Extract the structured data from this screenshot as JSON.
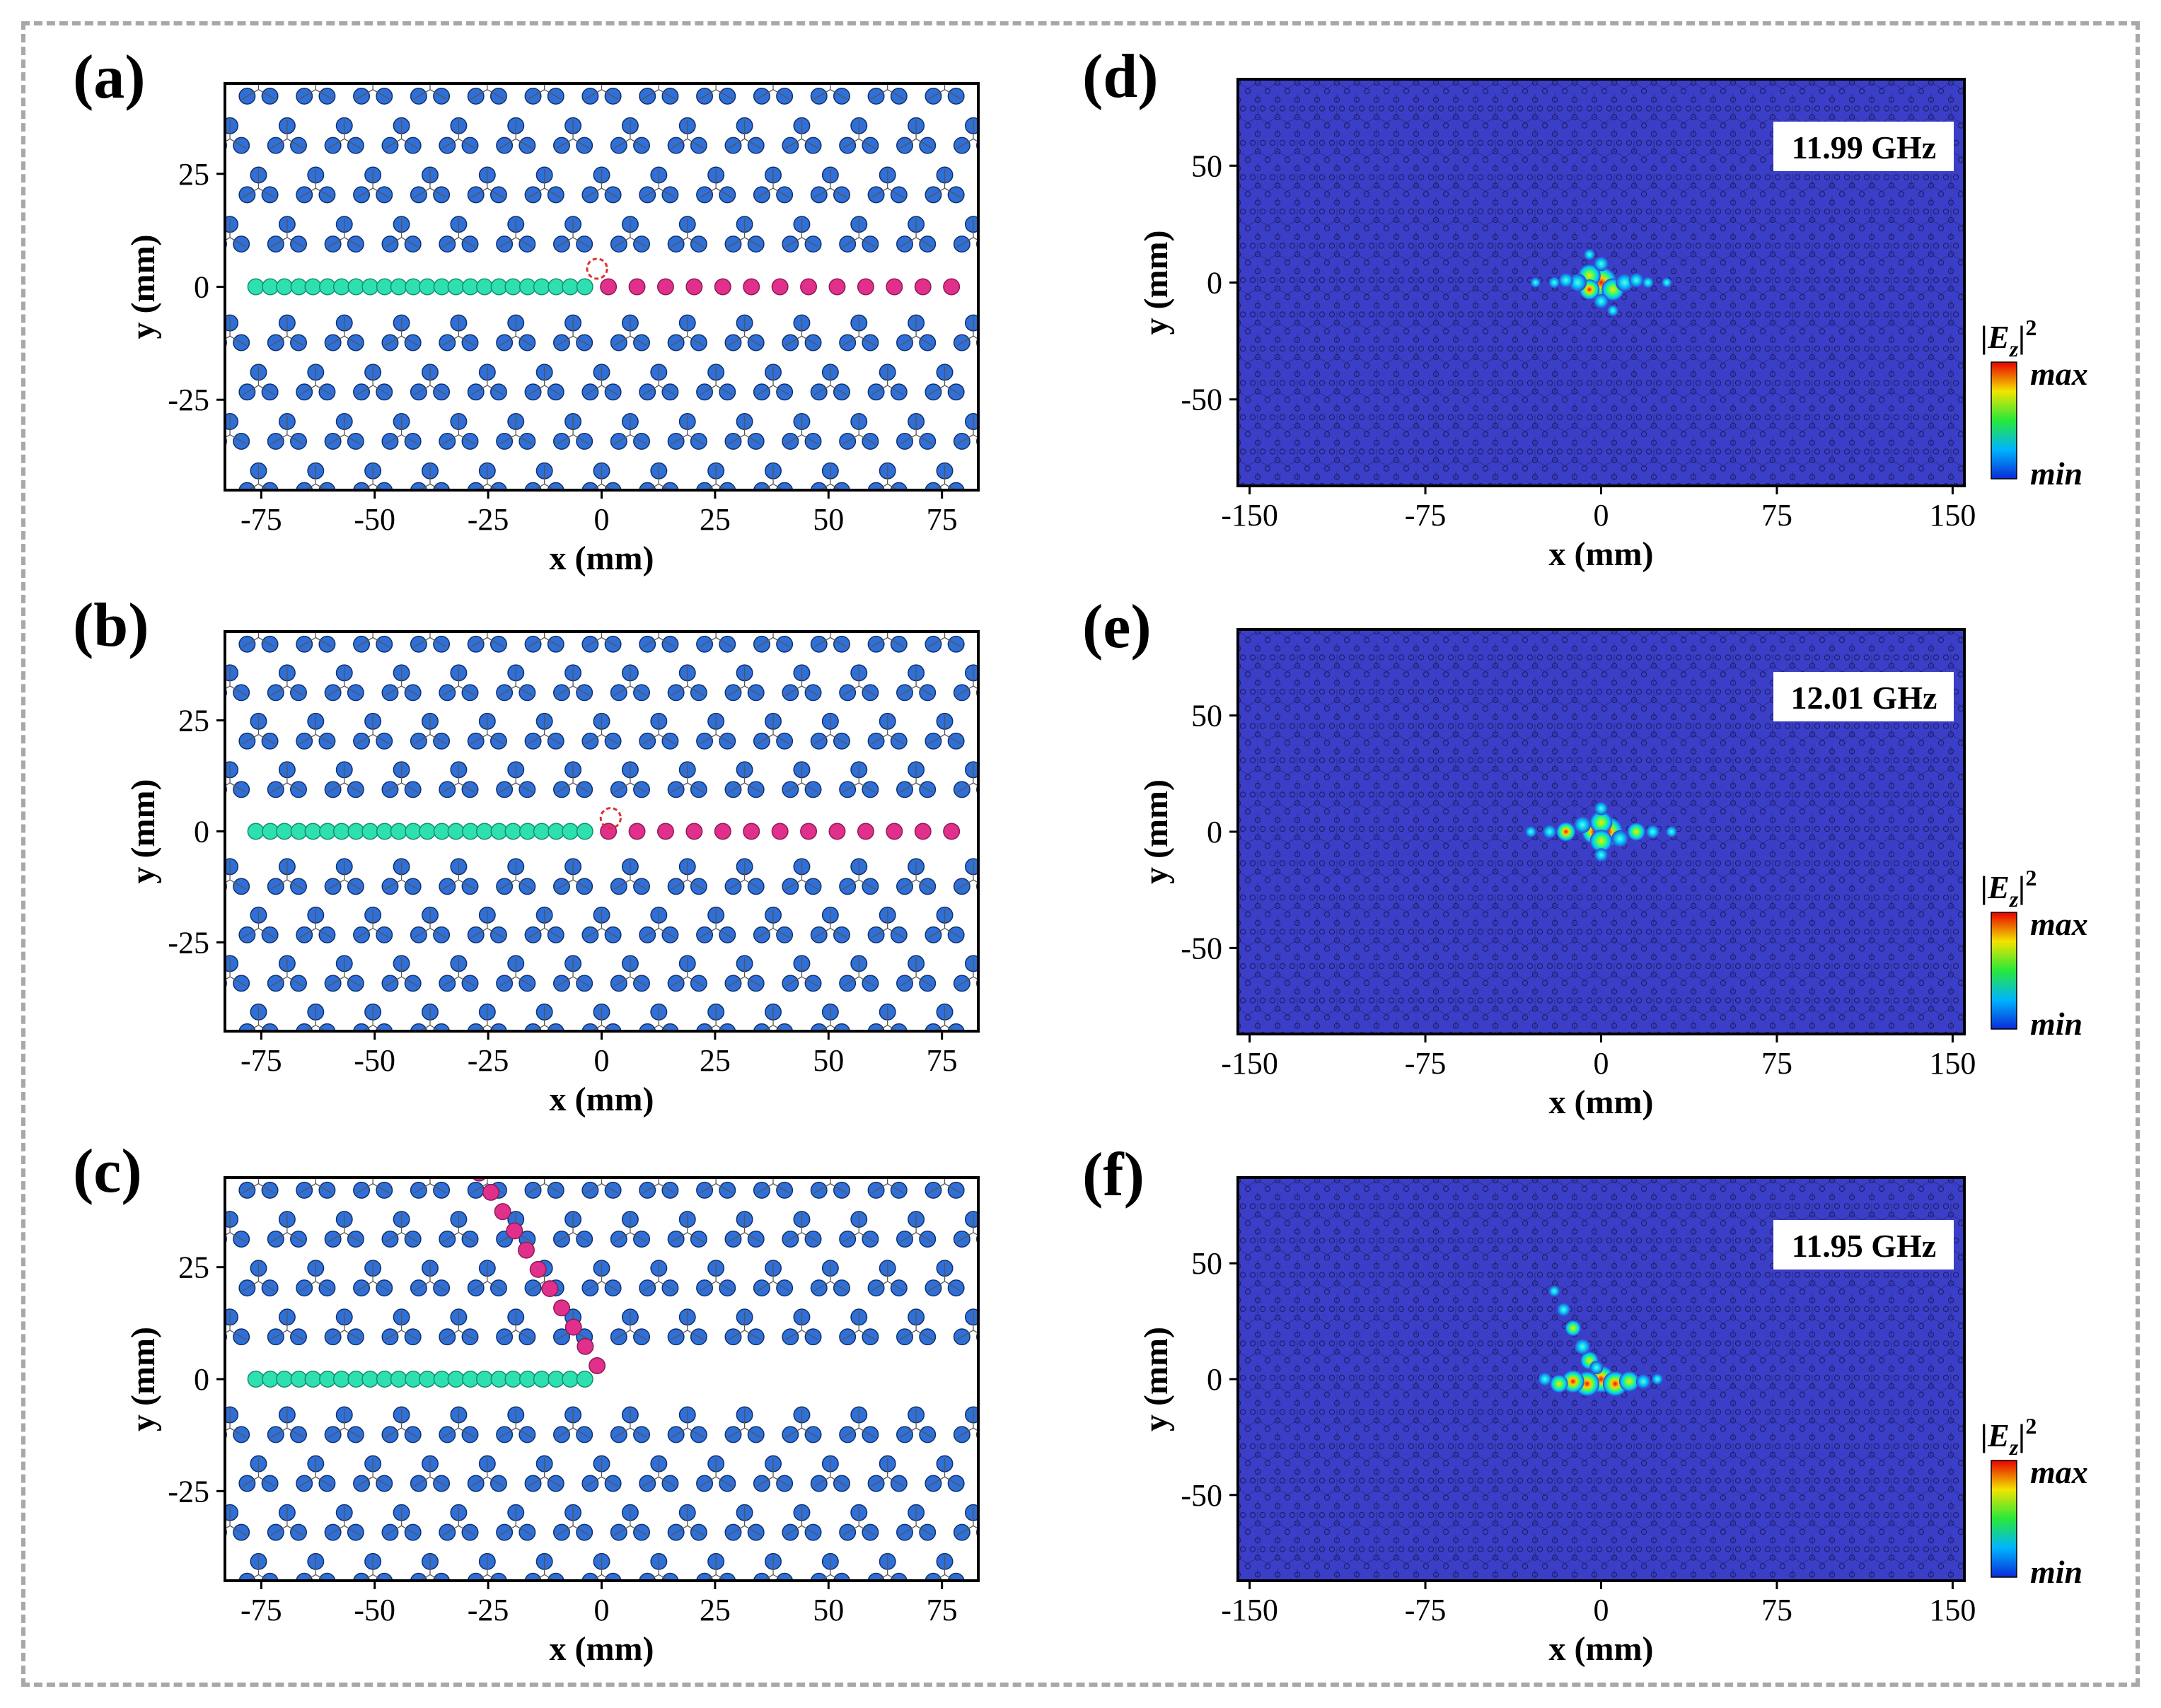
{
  "figure": {
    "panels_left": [
      {
        "label": "(a)",
        "xlabel": "x (mm)",
        "ylabel": "y (mm)",
        "xticks": [
          "-75",
          "-50",
          "-25",
          "0",
          "25",
          "50",
          "75"
        ],
        "yticks": [
          "25",
          "0",
          "-25"
        ],
        "xlim": [
          -83,
          83
        ],
        "ylim": [
          -45,
          45
        ],
        "domain_wall": "straight",
        "defect_x": -1,
        "defect_y": 4
      },
      {
        "label": "(b)",
        "xlabel": "x (mm)",
        "ylabel": "y (mm)",
        "xticks": [
          "-75",
          "-50",
          "-25",
          "0",
          "25",
          "50",
          "75"
        ],
        "yticks": [
          "25",
          "0",
          "-25"
        ],
        "xlim": [
          -83,
          83
        ],
        "ylim": [
          -45,
          45
        ],
        "domain_wall": "straight",
        "defect_x": 2,
        "defect_y": 3
      },
      {
        "label": "(c)",
        "xlabel": "x (mm)",
        "ylabel": "y (mm)",
        "xticks": [
          "-75",
          "-50",
          "-25",
          "0",
          "25",
          "50",
          "75"
        ],
        "yticks": [
          "25",
          "0",
          "-25"
        ],
        "xlim": [
          -83,
          83
        ],
        "ylim": [
          -45,
          45
        ],
        "domain_wall": "bent"
      }
    ],
    "panels_right": [
      {
        "label": "(d)",
        "frequency": "11.99 GHz",
        "xlabel": "x (mm)",
        "ylabel": "y (mm)",
        "xticks": [
          "-150",
          "-75",
          "0",
          "75",
          "150"
        ],
        "yticks": [
          "50",
          "0",
          "-50"
        ],
        "xlim": [
          -155,
          155
        ],
        "ylim": [
          -87,
          87
        ]
      },
      {
        "label": "(e)",
        "frequency": "12.01 GHz",
        "xlabel": "x (mm)",
        "ylabel": "y (mm)",
        "xticks": [
          "-150",
          "-75",
          "0",
          "75",
          "150"
        ],
        "yticks": [
          "50",
          "0",
          "-50"
        ],
        "xlim": [
          -155,
          155
        ],
        "ylim": [
          -87,
          87
        ]
      },
      {
        "label": "(f)",
        "frequency": "11.95 GHz",
        "xlabel": "x (mm)",
        "ylabel": "y (mm)",
        "xticks": [
          "-150",
          "-75",
          "0",
          "75",
          "150"
        ],
        "yticks": [
          "50",
          "0",
          "-50"
        ],
        "xlim": [
          -155,
          155
        ],
        "ylim": [
          -87,
          87
        ]
      }
    ],
    "colorbar": {
      "label": "|E",
      "subscript": "z",
      "suffix": "|",
      "superscript": "2",
      "max_label": "max",
      "min_label": "min"
    }
  },
  "colors": {
    "bulk_rod": "#2f6fd6",
    "wall_left": "#2ee0b0",
    "wall_right": "#e0308c",
    "defect": "#e03030",
    "field_bg": "#3b3fc7",
    "field_pattern": "#1e1f6e",
    "frame": "#a8a8a8"
  }
}
